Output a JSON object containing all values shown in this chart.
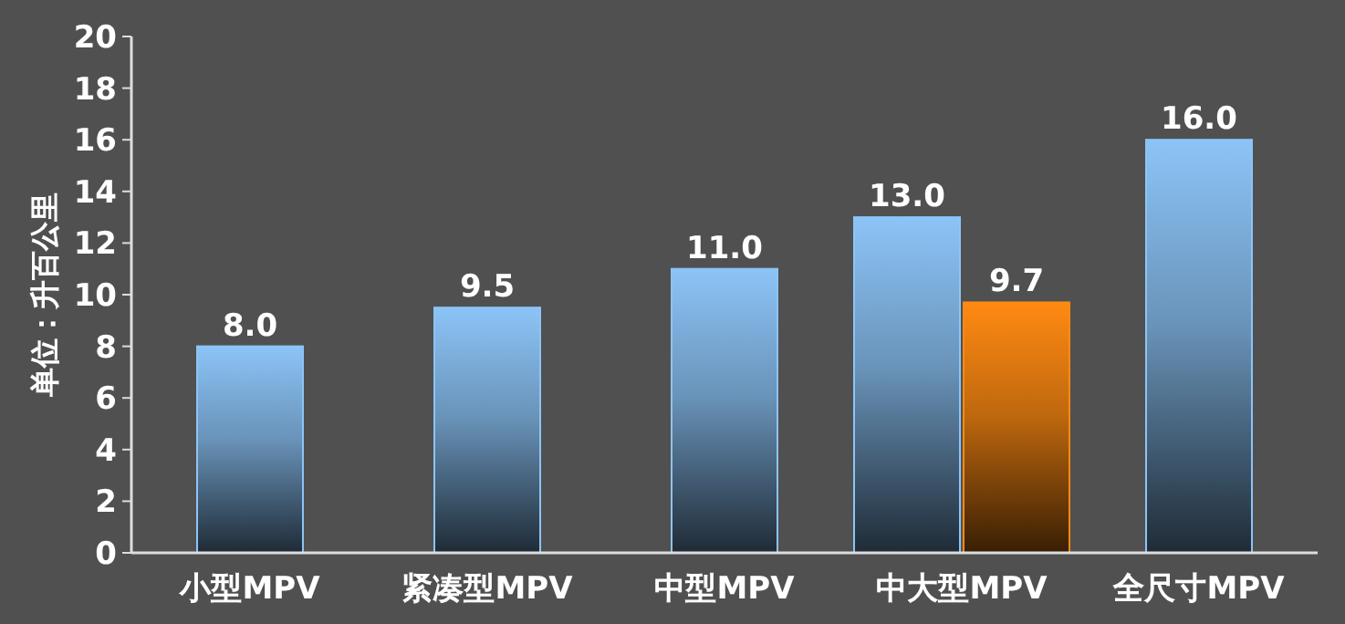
{
  "chart_data": {
    "type": "bar",
    "ylabel": "单位：升百公里",
    "categories": [
      "小型MPV",
      "紧凑型MPV",
      "中型MPV",
      "中大型MPV",
      "全尺寸MPV"
    ],
    "series": [
      {
        "color": "#8cc4f7",
        "values": [
          8.0,
          9.5,
          11.0,
          13.0,
          16.0
        ],
        "value_labels": [
          "8.0",
          "9.5",
          "11.0",
          "13.0",
          "16.0"
        ]
      },
      {
        "color": "#ff8a12",
        "values": [
          null,
          null,
          null,
          9.7,
          null
        ],
        "value_labels": [
          null,
          null,
          null,
          "9.7",
          null
        ]
      }
    ],
    "ylim": [
      0,
      20
    ],
    "yticks": [
      0,
      2,
      4,
      6,
      8,
      10,
      12,
      14,
      16,
      18,
      20
    ],
    "grid": false
  }
}
